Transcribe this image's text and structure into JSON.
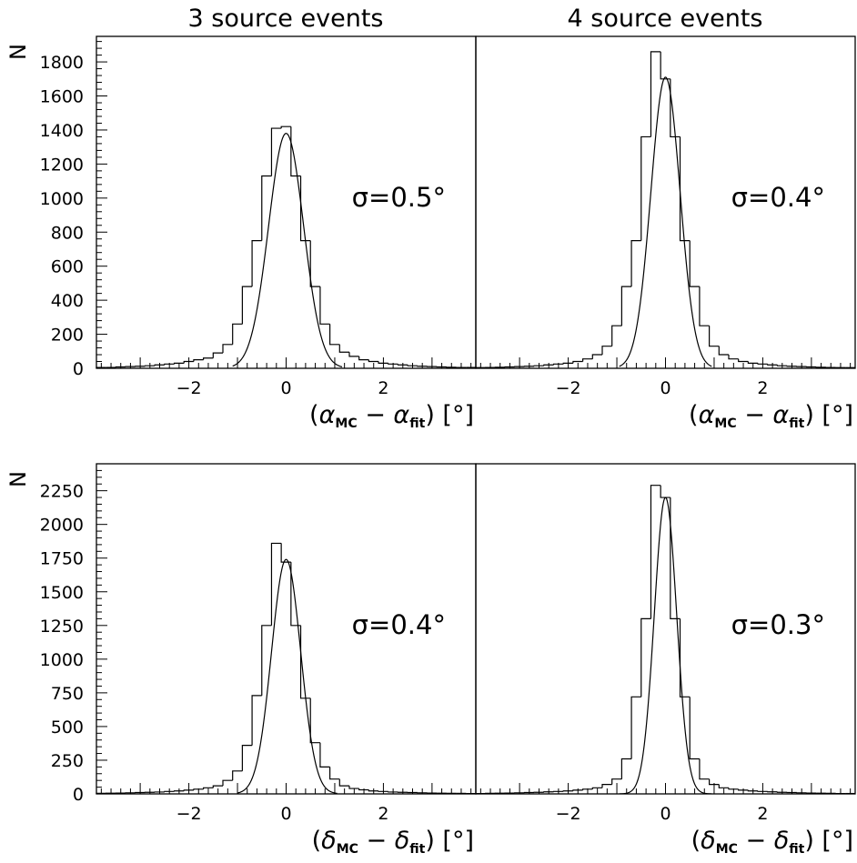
{
  "column_titles": [
    "3 source events",
    "4 source events"
  ],
  "y_axis_label": "N",
  "x_labels": {
    "alpha": {
      "open": "(",
      "sym1": "α",
      "sub1": "MC",
      "mid": " − ",
      "sym2": "α",
      "sub2": "fit",
      "close": ") [°]"
    },
    "delta": {
      "open": "(",
      "sym1": "δ",
      "sub1": "MC",
      "mid": " − ",
      "sym2": "δ",
      "sub2": "fit",
      "close": ") [°]"
    }
  },
  "colors": {
    "line": "#000000",
    "background": "#ffffff"
  },
  "chart_data": [
    {
      "type": "histogram",
      "panel": "top-left",
      "title": "3 source events",
      "ylabel": "N",
      "xlabel_key": "alpha",
      "annotation": "σ=0.5°",
      "xlim": [
        -3.9,
        3.9
      ],
      "ylim": [
        0,
        1950
      ],
      "xticks": [
        -2,
        0,
        2
      ],
      "yticks": [
        0,
        200,
        400,
        600,
        800,
        1000,
        1200,
        1400,
        1600,
        1800
      ],
      "bin_width": 0.2,
      "bin_centers": [
        -3.8,
        -3.6,
        -3.4,
        -3.2,
        -3.0,
        -2.8,
        -2.6,
        -2.4,
        -2.2,
        -2.0,
        -1.8,
        -1.6,
        -1.4,
        -1.2,
        -1.0,
        -0.8,
        -0.6,
        -0.4,
        -0.2,
        0.0,
        0.2,
        0.4,
        0.6,
        0.8,
        1.0,
        1.2,
        1.4,
        1.6,
        1.8,
        2.0,
        2.2,
        2.4,
        2.6,
        2.8,
        3.0,
        3.2,
        3.4,
        3.6,
        3.8
      ],
      "counts": [
        5,
        5,
        8,
        10,
        12,
        15,
        20,
        25,
        30,
        40,
        50,
        60,
        90,
        140,
        260,
        480,
        750,
        1130,
        1410,
        1420,
        1130,
        750,
        480,
        260,
        140,
        95,
        70,
        50,
        40,
        30,
        25,
        20,
        15,
        12,
        10,
        8,
        6,
        5,
        5
      ],
      "fit": {
        "type": "gaussian",
        "amplitude": 1380,
        "mean": 0.0,
        "sigma": 0.36,
        "range": [
          -1.1,
          1.15
        ]
      }
    },
    {
      "type": "histogram",
      "panel": "top-right",
      "title": "4 source events",
      "xlabel_key": "alpha",
      "annotation": "σ=0.4°",
      "xlim": [
        -3.9,
        3.9
      ],
      "ylim": [
        0,
        1950
      ],
      "xticks": [
        -2,
        0,
        2
      ],
      "bin_width": 0.2,
      "bin_centers": [
        -3.8,
        -3.6,
        -3.4,
        -3.2,
        -3.0,
        -2.8,
        -2.6,
        -2.4,
        -2.2,
        -2.0,
        -1.8,
        -1.6,
        -1.4,
        -1.2,
        -1.0,
        -0.8,
        -0.6,
        -0.4,
        -0.2,
        0.0,
        0.2,
        0.4,
        0.6,
        0.8,
        1.0,
        1.2,
        1.4,
        1.6,
        1.8,
        2.0,
        2.2,
        2.4,
        2.6,
        2.8,
        3.0,
        3.2,
        3.4,
        3.6,
        3.8
      ],
      "counts": [
        4,
        5,
        6,
        8,
        10,
        12,
        15,
        20,
        25,
        30,
        40,
        55,
        80,
        130,
        250,
        480,
        750,
        1360,
        1860,
        1700,
        1360,
        750,
        480,
        250,
        130,
        80,
        55,
        40,
        30,
        25,
        20,
        15,
        12,
        10,
        8,
        6,
        5,
        4,
        4
      ],
      "fit": {
        "type": "gaussian",
        "amplitude": 1710,
        "mean": 0.0,
        "sigma": 0.3,
        "range": [
          -0.95,
          0.95
        ]
      }
    },
    {
      "type": "histogram",
      "panel": "bottom-left",
      "ylabel": "N",
      "xlabel_key": "delta",
      "annotation": "σ=0.4°",
      "xlim": [
        -3.9,
        3.9
      ],
      "ylim": [
        0,
        2450
      ],
      "xticks": [
        -2,
        0,
        2
      ],
      "yticks": [
        0,
        250,
        500,
        750,
        1000,
        1250,
        1500,
        1750,
        2000,
        2250
      ],
      "bin_width": 0.2,
      "bin_centers": [
        -3.8,
        -3.6,
        -3.4,
        -3.2,
        -3.0,
        -2.8,
        -2.6,
        -2.4,
        -2.2,
        -2.0,
        -1.8,
        -1.6,
        -1.4,
        -1.2,
        -1.0,
        -0.8,
        -0.6,
        -0.4,
        -0.2,
        0.0,
        0.2,
        0.4,
        0.6,
        0.8,
        1.0,
        1.2,
        1.4,
        1.6,
        1.8,
        2.0,
        2.2,
        2.4,
        2.6,
        2.8,
        3.0,
        3.2,
        3.4,
        3.6,
        3.8
      ],
      "counts": [
        4,
        5,
        6,
        8,
        10,
        12,
        14,
        18,
        22,
        28,
        35,
        45,
        60,
        100,
        170,
        360,
        730,
        1250,
        1860,
        1720,
        1250,
        710,
        380,
        200,
        110,
        60,
        40,
        30,
        22,
        18,
        14,
        12,
        10,
        8,
        6,
        5,
        4,
        4,
        3
      ],
      "fit": {
        "type": "gaussian",
        "amplitude": 1740,
        "mean": 0.0,
        "sigma": 0.3,
        "range": [
          -1.0,
          1.05
        ]
      }
    },
    {
      "type": "histogram",
      "panel": "bottom-right",
      "xlabel_key": "delta",
      "annotation": "σ=0.3°",
      "xlim": [
        -3.9,
        3.9
      ],
      "ylim": [
        0,
        2450
      ],
      "xticks": [
        -2,
        0,
        2
      ],
      "bin_width": 0.2,
      "bin_centers": [
        -3.8,
        -3.6,
        -3.4,
        -3.2,
        -3.0,
        -2.8,
        -2.6,
        -2.4,
        -2.2,
        -2.0,
        -1.8,
        -1.6,
        -1.4,
        -1.2,
        -1.0,
        -0.8,
        -0.6,
        -0.4,
        -0.2,
        0.0,
        0.2,
        0.4,
        0.6,
        0.8,
        1.0,
        1.2,
        1.4,
        1.6,
        1.8,
        2.0,
        2.2,
        2.4,
        2.6,
        2.8,
        3.0,
        3.2,
        3.4,
        3.6,
        3.8
      ],
      "counts": [
        3,
        4,
        5,
        6,
        8,
        10,
        12,
        15,
        18,
        22,
        28,
        35,
        45,
        70,
        110,
        260,
        720,
        1300,
        2290,
        2200,
        1300,
        720,
        260,
        110,
        70,
        45,
        35,
        28,
        22,
        18,
        15,
        12,
        10,
        8,
        6,
        5,
        4,
        3,
        3
      ],
      "fit": {
        "type": "gaussian",
        "amplitude": 2200,
        "mean": 0.0,
        "sigma": 0.23,
        "range": [
          -0.95,
          0.95
        ]
      }
    }
  ]
}
